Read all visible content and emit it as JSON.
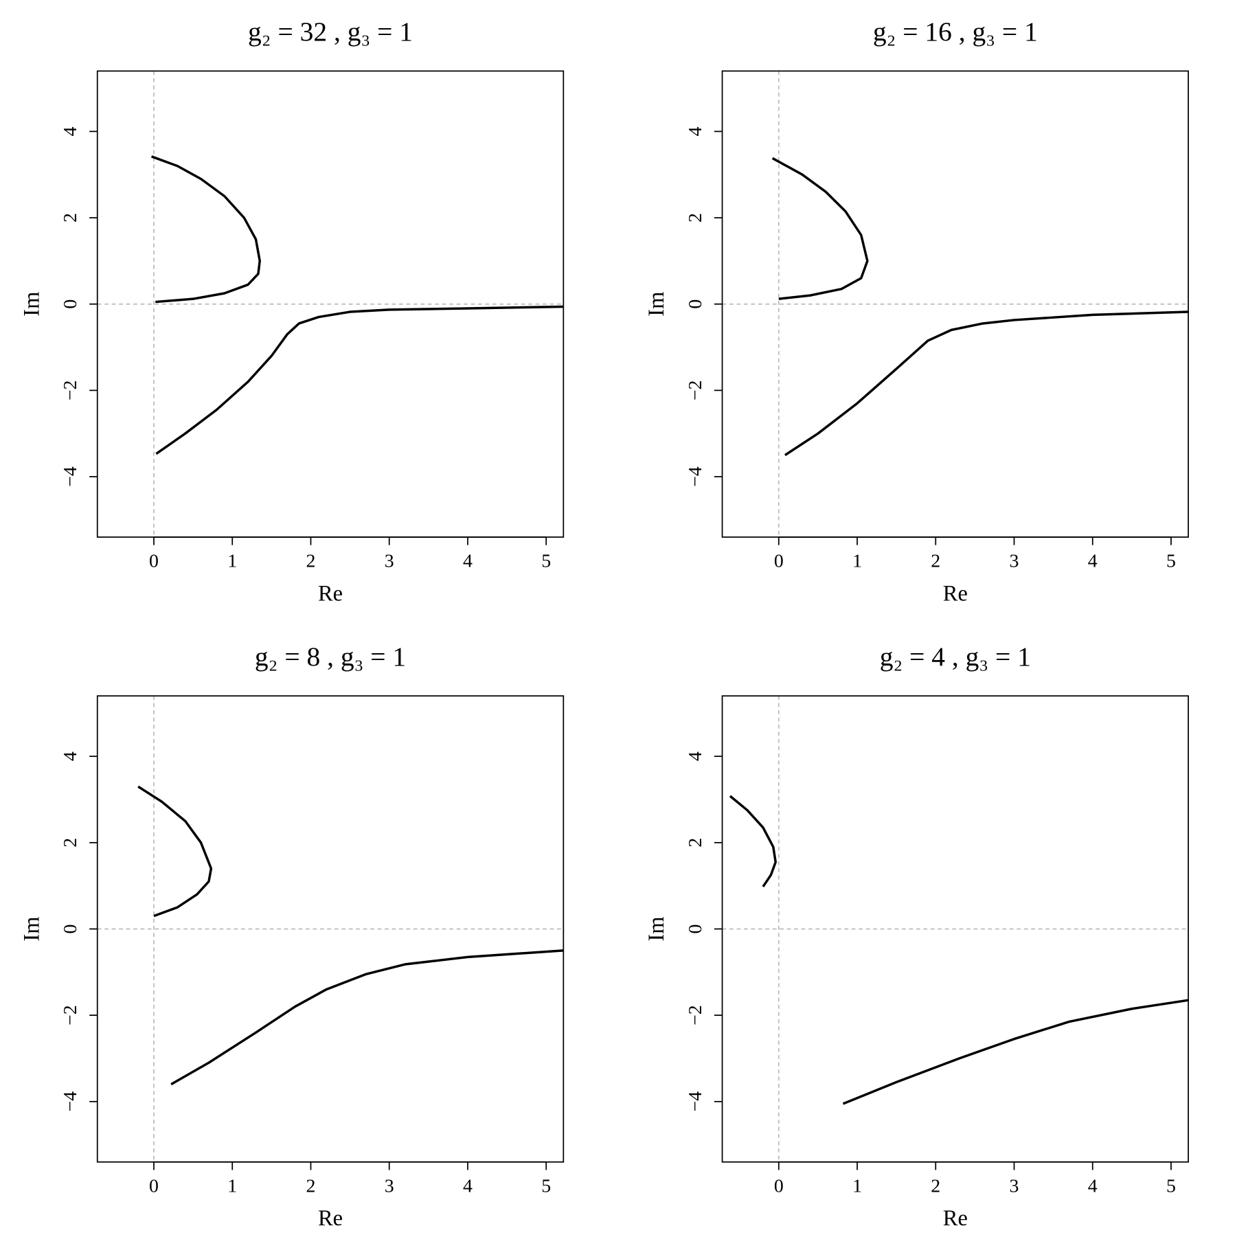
{
  "chart_data": [
    {
      "type": "line",
      "title": "g₂ = 32 ,  g₃ = 1",
      "x_label": "Re",
      "y_label": "Im",
      "xlim": [
        -0.72,
        5.22
      ],
      "ylim": [
        -5.4,
        5.4
      ],
      "xticks": [
        0,
        1,
        2,
        3,
        4,
        5
      ],
      "yticks": [
        {
          "value": -4,
          "label": "−4"
        },
        {
          "value": -2,
          "label": "−2"
        },
        0,
        2,
        4
      ],
      "hlines": [
        0
      ],
      "vlines": [
        0
      ],
      "reference_color": "#bbbbbb",
      "series": [
        {
          "color": "#000000",
          "x": [
            -0.03,
            0.3,
            0.6,
            0.9,
            1.15,
            1.3,
            1.35,
            1.33,
            1.2,
            0.9,
            0.5,
            0.02,
            null,
            0.03,
            0.4,
            0.8,
            1.2,
            1.5,
            1.7,
            1.85,
            2.1,
            2.5,
            3,
            4,
            5.22
          ],
          "values": [
            3.42,
            3.2,
            2.9,
            2.5,
            2.0,
            1.5,
            1.0,
            0.7,
            0.45,
            0.25,
            0.12,
            0.05,
            null,
            -3.47,
            -3.0,
            -2.45,
            -1.8,
            -1.2,
            -0.7,
            -0.45,
            -0.3,
            -0.18,
            -0.13,
            -0.1,
            -0.06
          ]
        }
      ]
    },
    {
      "type": "line",
      "title": "g₂ = 16 ,  g₃ = 1",
      "x_label": "Re",
      "y_label": "Im",
      "xlim": [
        -0.72,
        5.22
      ],
      "ylim": [
        -5.4,
        5.4
      ],
      "xticks": [
        0,
        1,
        2,
        3,
        4,
        5
      ],
      "yticks": [
        {
          "value": -4,
          "label": "−4"
        },
        {
          "value": -2,
          "label": "−2"
        },
        0,
        2,
        4
      ],
      "hlines": [
        0
      ],
      "vlines": [
        0
      ],
      "reference_color": "#bbbbbb",
      "series": [
        {
          "color": "#000000",
          "x": [
            -0.08,
            0.3,
            0.6,
            0.85,
            1.05,
            1.13,
            1.05,
            0.8,
            0.4,
            0,
            null,
            0.08,
            0.5,
            1.0,
            1.5,
            1.9,
            2.2,
            2.6,
            3,
            4,
            5.22
          ],
          "values": [
            3.38,
            3.0,
            2.6,
            2.15,
            1.6,
            1.0,
            0.6,
            0.35,
            0.2,
            0.12,
            null,
            -3.5,
            -3.0,
            -2.3,
            -1.5,
            -0.85,
            -0.6,
            -0.45,
            -0.37,
            -0.25,
            -0.18
          ]
        }
      ]
    },
    {
      "type": "line",
      "title": "g₂ = 8 ,  g₃ = 1",
      "x_label": "Re",
      "y_label": "Im",
      "xlim": [
        -0.72,
        5.22
      ],
      "ylim": [
        -5.4,
        5.4
      ],
      "xticks": [
        0,
        1,
        2,
        3,
        4,
        5
      ],
      "yticks": [
        {
          "value": -4,
          "label": "−4"
        },
        {
          "value": -2,
          "label": "−2"
        },
        0,
        2,
        4
      ],
      "hlines": [
        0
      ],
      "vlines": [
        0
      ],
      "reference_color": "#bbbbbb",
      "series": [
        {
          "color": "#000000",
          "x": [
            -0.2,
            0.1,
            0.4,
            0.6,
            0.73,
            0.7,
            0.55,
            0.3,
            0,
            null,
            0.22,
            0.7,
            1.3,
            1.8,
            2.2,
            2.7,
            3.2,
            4,
            5.22
          ],
          "values": [
            3.3,
            2.95,
            2.5,
            2.0,
            1.4,
            1.1,
            0.8,
            0.5,
            0.3,
            null,
            -3.6,
            -3.1,
            -2.4,
            -1.8,
            -1.4,
            -1.05,
            -0.82,
            -0.65,
            -0.5
          ]
        }
      ]
    },
    {
      "type": "line",
      "title": "g₂ = 4 ,  g₃ = 1",
      "x_label": "Re",
      "y_label": "Im",
      "xlim": [
        -0.72,
        5.22
      ],
      "ylim": [
        -5.4,
        5.4
      ],
      "xticks": [
        0,
        1,
        2,
        3,
        4,
        5
      ],
      "yticks": [
        {
          "value": -4,
          "label": "−4"
        },
        {
          "value": -2,
          "label": "−2"
        },
        0,
        2,
        4
      ],
      "hlines": [
        0
      ],
      "vlines": [
        0
      ],
      "reference_color": "#bbbbbb",
      "series": [
        {
          "color": "#000000",
          "x": [
            -0.62,
            -0.4,
            -0.2,
            -0.07,
            -0.04,
            -0.1,
            -0.2,
            null,
            0.82,
            1.5,
            2.3,
            3,
            3.7,
            4.5,
            5.22
          ],
          "values": [
            3.08,
            2.75,
            2.35,
            1.9,
            1.55,
            1.25,
            0.98,
            null,
            -4.05,
            -3.55,
            -3.0,
            -2.55,
            -2.15,
            -1.85,
            -1.65
          ]
        }
      ]
    }
  ]
}
